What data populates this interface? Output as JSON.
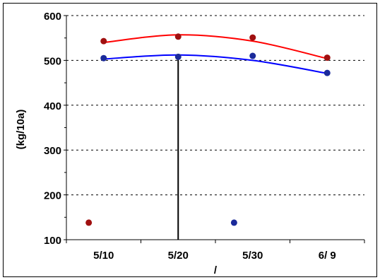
{
  "chart_data": {
    "type": "scatter",
    "title": "",
    "xlabel": "/",
    "ylabel": "(kg/10a)",
    "categories": [
      "5/10",
      "5/20",
      "5/30",
      "6/ 9"
    ],
    "ylim": [
      100,
      600
    ],
    "yticks": [
      100,
      200,
      300,
      400,
      500,
      600
    ],
    "grid": "horizontal dashed",
    "series": [
      {
        "color": "#ff0000",
        "marker_color": "#a01010",
        "points": [
          {
            "x": "5/10",
            "y": 543
          },
          {
            "x": "5/20",
            "y": 553
          },
          {
            "x": "5/30",
            "y": 551
          },
          {
            "x": "6/ 9",
            "y": 506
          }
        ],
        "fit_curve": [
          {
            "x": "5/10",
            "y": 540
          },
          {
            "x": "5/20",
            "y": 557
          },
          {
            "x": "5/30",
            "y": 543
          },
          {
            "x": "6/ 9",
            "y": 504
          }
        ]
      },
      {
        "color": "#0000ff",
        "marker_color": "#1a2a9a",
        "points": [
          {
            "x": "5/10",
            "y": 505
          },
          {
            "x": "5/20",
            "y": 508
          },
          {
            "x": "5/30",
            "y": 510
          },
          {
            "x": "6/ 9",
            "y": 472
          }
        ],
        "fit_curve": [
          {
            "x": "5/10",
            "y": 503
          },
          {
            "x": "5/20",
            "y": 512
          },
          {
            "x": "5/30",
            "y": 500
          },
          {
            "x": "6/ 9",
            "y": 471
          }
        ]
      }
    ],
    "legend_markers": [
      {
        "color": "#a01010",
        "x_category_pos": 0.3,
        "y": 138
      },
      {
        "color": "#1a2a9a",
        "x_category_pos": 2.25,
        "y": 138
      }
    ],
    "vertical_line_at": "5/20"
  }
}
